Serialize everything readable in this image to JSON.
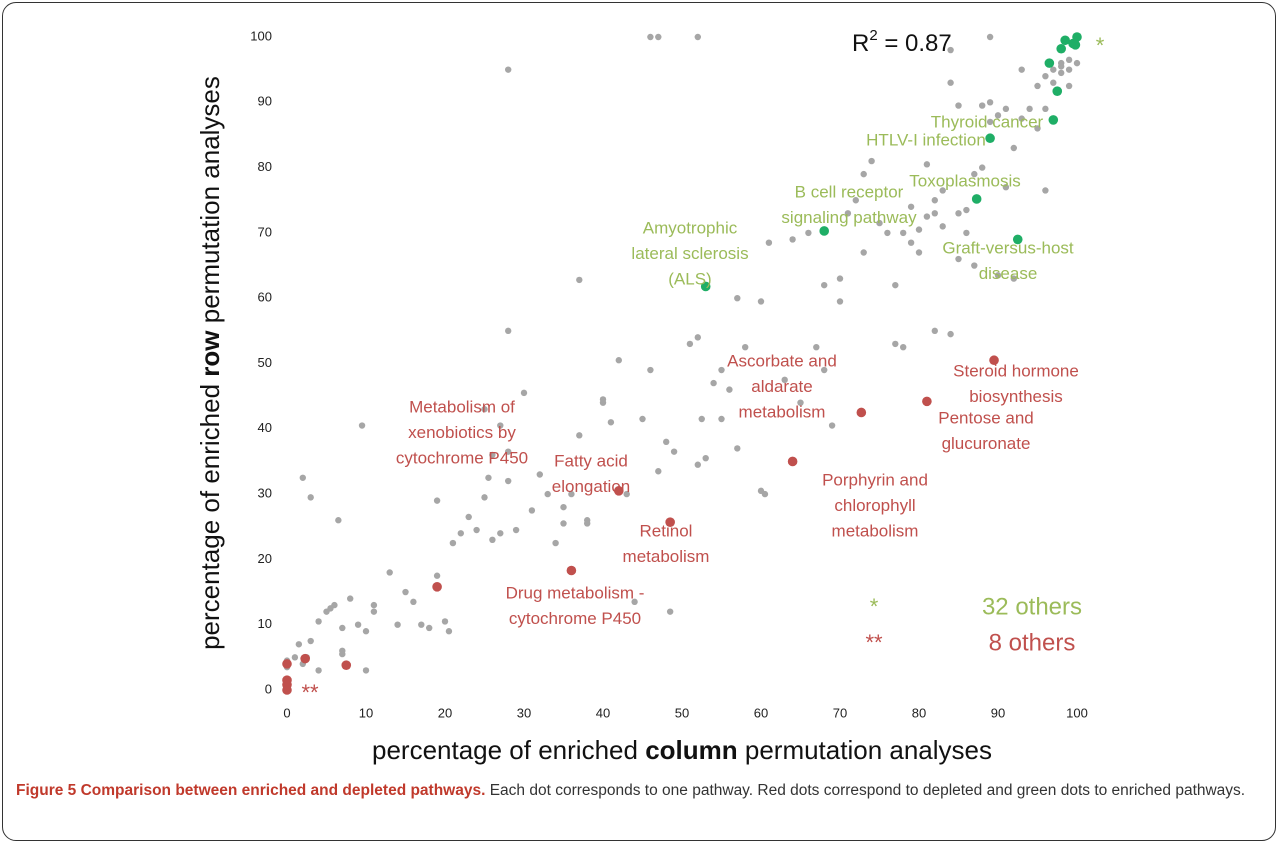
{
  "chart_data": {
    "type": "scatter",
    "xlabel": {
      "before": "percentage of enriched ",
      "bold": "column",
      "after": " permutation analyses"
    },
    "ylabel": {
      "before": "percentage of enriched ",
      "bold": "row",
      "after": " permutation analyses"
    },
    "xlim": [
      0,
      100
    ],
    "ylim": [
      0,
      100
    ],
    "xticks": [
      0,
      10,
      20,
      30,
      40,
      50,
      60,
      70,
      80,
      90,
      100
    ],
    "yticks": [
      0,
      10,
      20,
      30,
      40,
      50,
      60,
      70,
      80,
      90,
      100
    ],
    "series": [
      {
        "color": "#a6a6a6",
        "x": [
          0,
          0,
          1,
          1.5,
          2,
          2.5,
          3,
          2,
          3,
          4,
          4,
          5,
          5.5,
          6,
          6.5,
          7,
          7,
          7,
          8,
          9,
          9.5,
          10,
          10,
          11,
          11,
          13,
          14,
          15,
          16,
          17,
          18,
          19,
          19,
          20,
          20.5,
          21,
          22,
          23,
          24,
          25,
          25,
          25.5,
          26,
          26,
          27,
          27,
          28,
          28,
          28,
          28,
          29,
          30,
          31,
          32,
          33,
          34,
          35,
          35,
          36,
          37,
          38,
          38,
          37,
          40,
          40,
          41,
          42,
          43,
          44,
          45,
          46,
          46,
          47,
          47,
          48,
          48.5,
          49,
          51,
          52,
          52,
          52,
          52.5,
          53,
          54,
          55,
          55,
          56,
          57,
          57,
          58,
          60,
          60,
          60.5,
          61,
          63,
          64,
          65,
          66,
          67,
          68,
          68,
          69,
          70,
          70,
          71,
          72,
          73,
          73,
          74,
          75,
          76,
          77,
          77,
          78,
          78,
          79,
          79,
          80,
          80,
          81,
          81,
          82,
          82,
          82,
          83,
          83,
          84,
          84,
          84,
          85,
          85,
          85,
          86,
          86,
          87,
          87,
          88,
          88,
          89,
          89,
          89,
          90,
          90,
          91,
          91,
          92,
          92,
          93,
          93,
          94,
          95,
          95,
          96,
          96,
          96,
          97,
          97,
          98,
          98,
          98,
          99,
          99,
          99,
          100
        ],
        "y": [
          4.5,
          3.5,
          5,
          7,
          32.5,
          5,
          29.5,
          4,
          7.5,
          10.5,
          3,
          12,
          12.5,
          13,
          26,
          5.5,
          6,
          9.5,
          14,
          10,
          40.5,
          9,
          3,
          13,
          12,
          18,
          10,
          15,
          13.5,
          10,
          9.5,
          29,
          17.5,
          10.5,
          9,
          22.5,
          24,
          26.5,
          24.5,
          43,
          29.5,
          32.5,
          36,
          23,
          40.5,
          24,
          95,
          55,
          36.5,
          32,
          24.5,
          45.5,
          27.5,
          33,
          30,
          22.5,
          25.5,
          28,
          30,
          39,
          26,
          25.5,
          62.8,
          44.5,
          44,
          41,
          50.5,
          30,
          13.5,
          41.5,
          100,
          49,
          100,
          33.5,
          38,
          12,
          36.5,
          53,
          54,
          34.5,
          100,
          41.5,
          35.5,
          47,
          49,
          41.5,
          46,
          37,
          60,
          52.5,
          59.5,
          30.5,
          30,
          68.5,
          47.5,
          69,
          44,
          70,
          52.5,
          49,
          62,
          40.5,
          63,
          59.5,
          73,
          75,
          67,
          79,
          81,
          71.5,
          70,
          62,
          53,
          70,
          52.5,
          74,
          68.5,
          70.5,
          67,
          72.5,
          80.5,
          75,
          55,
          73,
          76.5,
          71,
          54.5,
          98,
          93,
          89.5,
          66,
          73,
          73.5,
          70,
          65,
          79,
          80,
          89.5,
          90,
          87,
          100,
          88,
          63.5,
          89,
          77,
          83,
          63,
          87.5,
          95,
          89,
          86,
          92.5,
          89,
          76.5,
          94,
          95,
          93,
          96,
          95.5,
          94.5,
          96.5,
          95,
          92.5,
          96
        ]
      },
      {
        "color": "#c0504d",
        "x": [
          0,
          0,
          0,
          0,
          2.3,
          7.5,
          19,
          36,
          42,
          48.5,
          64,
          72.7,
          81,
          89.5
        ],
        "y": [
          4,
          1.5,
          0.8,
          0,
          4.8,
          3.8,
          15.8,
          18.3,
          30.5,
          25.7,
          35,
          42.5,
          44.2,
          50.5
        ]
      },
      {
        "color": "#1fae66",
        "x": [
          53,
          68,
          87.3,
          89,
          92.5,
          97,
          97.5,
          96.5,
          98,
          98.5,
          99.5,
          100,
          99.8
        ],
        "y": [
          61.8,
          70.3,
          75.2,
          84.5,
          69,
          87.3,
          91.7,
          96,
          98.2,
          99.5,
          99,
          100,
          98.8
        ]
      }
    ],
    "r2": {
      "base": "R",
      "sup": "2",
      "rest": " = 0.87"
    },
    "red_labels": [
      [
        "Metabolism of",
        "xenobiotics by",
        "cytochrome P450"
      ],
      [
        "Drug metabolism -",
        "cytochrome P450"
      ],
      [
        "Fatty acid",
        "elongation"
      ],
      [
        "Retinol",
        "metabolism"
      ],
      [
        "Ascorbate and",
        "aldarate",
        "metabolism"
      ],
      [
        "Porphyrin and",
        "chlorophyll",
        "metabolism"
      ],
      [
        "Steroid hormone",
        "biosynthesis"
      ],
      [
        "Pentose and",
        "glucuronate"
      ]
    ],
    "green_labels": [
      [
        "Amyotrophic",
        "lateral sclerosis",
        "(ALS)"
      ],
      [
        "B cell receptor",
        "signaling pathway"
      ],
      [
        "Toxoplasmosis"
      ],
      [
        "HTLV-I infection"
      ],
      [
        "Thyroid cancer"
      ],
      [
        "Graft-versus-host",
        "disease"
      ]
    ],
    "label_colors": {
      "red": "#c0504d",
      "green": "#9bbb59"
    },
    "corner_marks": [
      {
        "text": "*",
        "color": "#9bbb59"
      },
      {
        "text": "**",
        "color": "#c0504d"
      }
    ],
    "others": [
      {
        "mark": "*",
        "text": "32 others",
        "color": "#9bbb59"
      },
      {
        "mark": "**",
        "text": "8 others",
        "color": "#c0504d"
      }
    ]
  },
  "caption": {
    "bold": "Figure 5 Comparison between enriched and depleted pathways.",
    "text": " Each dot corresponds to one pathway. Red dots correspond to depleted and green dots to enriched pathways."
  }
}
